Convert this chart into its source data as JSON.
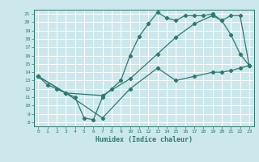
{
  "xlabel": "Humidex (Indice chaleur)",
  "bg_color": "#cce8ec",
  "grid_color": "#ffffff",
  "line_color": "#2d7a6e",
  "xlim": [
    -0.5,
    23.5
  ],
  "ylim": [
    7.5,
    21.5
  ],
  "xticks": [
    0,
    1,
    2,
    3,
    4,
    5,
    6,
    7,
    8,
    9,
    10,
    11,
    12,
    13,
    14,
    15,
    16,
    17,
    18,
    19,
    20,
    21,
    22,
    23
  ],
  "yticks": [
    8,
    9,
    10,
    11,
    12,
    13,
    14,
    15,
    16,
    17,
    18,
    19,
    20,
    21
  ],
  "line1_x": [
    0,
    1,
    2,
    3,
    4,
    5,
    6,
    7,
    8,
    9,
    10,
    11,
    12,
    13,
    14,
    15,
    16,
    17,
    18,
    19,
    20,
    21,
    22,
    23
  ],
  "line1_y": [
    13.5,
    12.5,
    12.0,
    11.5,
    11.0,
    8.5,
    8.3,
    11.0,
    12.0,
    13.0,
    16.0,
    18.3,
    19.8,
    21.2,
    20.5,
    20.2,
    20.8,
    20.8,
    20.8,
    21.0,
    20.2,
    18.5,
    16.2,
    14.8
  ],
  "line2_x": [
    0,
    3,
    7,
    10,
    13,
    15,
    17,
    19,
    20,
    21,
    22,
    23
  ],
  "line2_y": [
    13.5,
    11.5,
    11.2,
    13.2,
    16.2,
    18.2,
    19.8,
    20.8,
    20.2,
    20.8,
    20.8,
    14.8
  ],
  "line3_x": [
    0,
    3,
    7,
    10,
    13,
    15,
    17,
    19,
    20,
    21,
    22,
    23
  ],
  "line3_y": [
    13.5,
    11.5,
    8.5,
    12.0,
    14.5,
    13.0,
    13.5,
    14.0,
    14.0,
    14.2,
    14.5,
    14.8
  ]
}
